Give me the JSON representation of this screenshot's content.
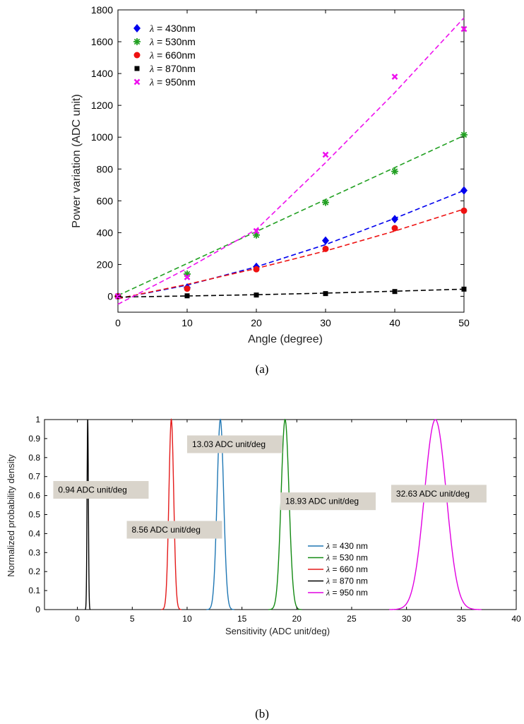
{
  "captions": {
    "a": "(a)",
    "b": "(b)"
  },
  "chart_data": [
    {
      "id": "a",
      "type": "scatter",
      "xlabel": "Angle (degree)",
      "ylabel": "Power variation (ADC unit)",
      "xlim": [
        0,
        50
      ],
      "ylim": [
        -100,
        1800
      ],
      "xticks": [
        0,
        10,
        20,
        30,
        40,
        50
      ],
      "yticks": [
        0,
        200,
        400,
        600,
        800,
        1000,
        1200,
        1400,
        1600,
        1800
      ],
      "legend_position": "top-left",
      "series": [
        {
          "name": "λ = 430nm",
          "color": "#0000ee",
          "marker": "diamond",
          "x": [
            0,
            10,
            20,
            30,
            40,
            50
          ],
          "y": [
            0,
            55,
            185,
            350,
            485,
            665
          ],
          "fit": [
            [
              0,
              -15
            ],
            [
              10,
              70
            ],
            [
              20,
              185
            ],
            [
              30,
              325
            ],
            [
              40,
              490
            ],
            [
              50,
              665
            ]
          ]
        },
        {
          "name": "λ = 530nm",
          "color": "#22a022",
          "marker": "asterisk",
          "x": [
            0,
            10,
            20,
            30,
            40,
            50
          ],
          "y": [
            0,
            140,
            385,
            590,
            785,
            1015
          ],
          "fit": [
            [
              0,
              5
            ],
            [
              50,
              1010
            ]
          ]
        },
        {
          "name": "λ = 660nm",
          "color": "#ee1111",
          "marker": "circle",
          "x": [
            0,
            10,
            20,
            30,
            40,
            50
          ],
          "y": [
            0,
            48,
            170,
            298,
            428,
            538
          ],
          "fit": [
            [
              0,
              -15
            ],
            [
              10,
              75
            ],
            [
              20,
              175
            ],
            [
              30,
              285
            ],
            [
              40,
              410
            ],
            [
              50,
              548
            ]
          ]
        },
        {
          "name": "λ = 870nm",
          "color": "#000000",
          "marker": "square",
          "x": [
            0,
            10,
            20,
            30,
            40,
            50
          ],
          "y": [
            0,
            3,
            8,
            17,
            30,
            45
          ],
          "fit": [
            [
              0,
              -5
            ],
            [
              10,
              2
            ],
            [
              20,
              10
            ],
            [
              30,
              20
            ],
            [
              40,
              32
            ],
            [
              50,
              45
            ]
          ]
        },
        {
          "name": "λ = 950nm",
          "color": "#ee11ee",
          "marker": "x",
          "x": [
            0,
            10,
            20,
            30,
            40,
            50
          ],
          "y": [
            0,
            120,
            410,
            890,
            1380,
            1680
          ],
          "fit": [
            [
              0,
              -50
            ],
            [
              10,
              175
            ],
            [
              20,
              420
            ],
            [
              30,
              840
            ],
            [
              40,
              1280
            ],
            [
              50,
              1750
            ]
          ]
        }
      ]
    },
    {
      "id": "b",
      "type": "line",
      "xlabel": "Sensitivity (ADC unit/deg)",
      "ylabel": "Normalized probability density",
      "xlim": [
        -3,
        40
      ],
      "ylim": [
        0,
        1
      ],
      "xticks": [
        0,
        5,
        10,
        15,
        20,
        25,
        30,
        35,
        40
      ],
      "yticks": [
        0,
        0.1,
        0.2,
        0.3,
        0.4,
        0.5,
        0.6,
        0.7,
        0.8,
        0.9,
        1
      ],
      "legend_position": "bottom-right",
      "series": [
        {
          "name": "λ = 430 nm",
          "color": "#1f77b4",
          "mean": 13.03,
          "sigma": 0.3
        },
        {
          "name": "λ = 530 nm",
          "color": "#138a13",
          "mean": 18.93,
          "sigma": 0.36
        },
        {
          "name": "λ = 660 nm",
          "color": "#e41a1a",
          "mean": 8.56,
          "sigma": 0.22
        },
        {
          "name": "λ = 870 nm",
          "color": "#000000",
          "mean": 0.94,
          "sigma": 0.06
        },
        {
          "name": "λ = 950 nm",
          "color": "#e100e1",
          "mean": 32.63,
          "sigma": 1.0
        }
      ],
      "annotations": [
        {
          "text": "13.03 ADC unit/deg",
          "x": 10.0,
          "y": 0.87
        },
        {
          "text": "0.94 ADC unit/deg",
          "x": -2.2,
          "y": 0.63
        },
        {
          "text": "8.56 ADC unit/deg",
          "x": 4.5,
          "y": 0.42
        },
        {
          "text": "18.93 ADC unit/deg",
          "x": 18.5,
          "y": 0.57
        },
        {
          "text": "32.63 ADC unit/deg",
          "x": 28.6,
          "y": 0.61
        }
      ]
    }
  ]
}
